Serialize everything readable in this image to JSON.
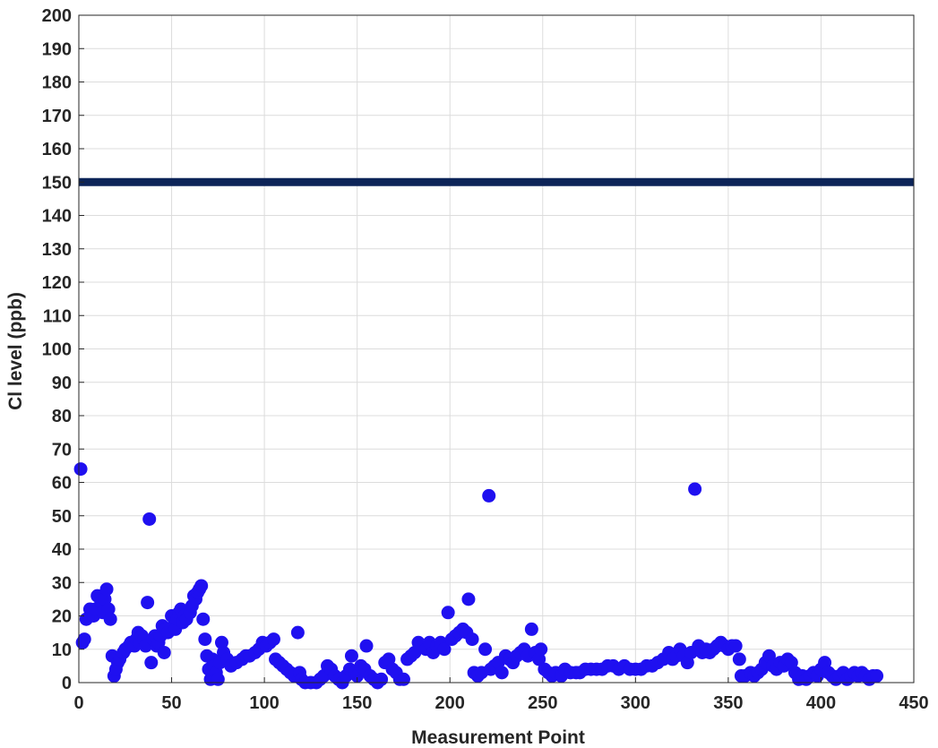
{
  "chart_data": {
    "type": "scatter",
    "title": "",
    "xlabel": "Measurement Point",
    "ylabel": "Cl level (ppb)",
    "xlim": [
      0,
      450
    ],
    "ylim": [
      0,
      200
    ],
    "xticks": [
      0,
      50,
      100,
      150,
      200,
      250,
      300,
      350,
      400,
      450
    ],
    "yticks": [
      0,
      10,
      20,
      30,
      40,
      50,
      60,
      70,
      80,
      90,
      100,
      110,
      120,
      130,
      140,
      150,
      160,
      170,
      180,
      190,
      200
    ],
    "grid": true,
    "marker_color": "#1f10f0",
    "threshold": {
      "y": 150,
      "x_range": [
        0,
        450
      ],
      "color": "#0c2458"
    },
    "points": [
      [
        1,
        64
      ],
      [
        2,
        12
      ],
      [
        3,
        13
      ],
      [
        4,
        19
      ],
      [
        6,
        22
      ],
      [
        8,
        20
      ],
      [
        9,
        22
      ],
      [
        10,
        26
      ],
      [
        12,
        24
      ],
      [
        13,
        21
      ],
      [
        14,
        25
      ],
      [
        15,
        28
      ],
      [
        16,
        22
      ],
      [
        17,
        19
      ],
      [
        18,
        8
      ],
      [
        19,
        2
      ],
      [
        20,
        4
      ],
      [
        21,
        6
      ],
      [
        22,
        7
      ],
      [
        24,
        9
      ],
      [
        25,
        10
      ],
      [
        27,
        11
      ],
      [
        28,
        12
      ],
      [
        30,
        11
      ],
      [
        31,
        13
      ],
      [
        32,
        15
      ],
      [
        33,
        12
      ],
      [
        34,
        14
      ],
      [
        35,
        13
      ],
      [
        36,
        11
      ],
      [
        37,
        24
      ],
      [
        38,
        49
      ],
      [
        39,
        6
      ],
      [
        40,
        13
      ],
      [
        41,
        14
      ],
      [
        42,
        11
      ],
      [
        43,
        12
      ],
      [
        44,
        14
      ],
      [
        45,
        17
      ],
      [
        46,
        9
      ],
      [
        47,
        16
      ],
      [
        48,
        15
      ],
      [
        50,
        20
      ],
      [
        51,
        17
      ],
      [
        52,
        16
      ],
      [
        53,
        19
      ],
      [
        54,
        21
      ],
      [
        55,
        22
      ],
      [
        56,
        18
      ],
      [
        57,
        20
      ],
      [
        58,
        19
      ],
      [
        60,
        21
      ],
      [
        61,
        23
      ],
      [
        62,
        26
      ],
      [
        63,
        25
      ],
      [
        64,
        27
      ],
      [
        65,
        28
      ],
      [
        66,
        29
      ],
      [
        67,
        19
      ],
      [
        68,
        13
      ],
      [
        69,
        8
      ],
      [
        70,
        4
      ],
      [
        71,
        1
      ],
      [
        72,
        7
      ],
      [
        73,
        5
      ],
      [
        74,
        3
      ],
      [
        75,
        1
      ],
      [
        76,
        6
      ],
      [
        77,
        12
      ],
      [
        78,
        9
      ],
      [
        80,
        7
      ],
      [
        82,
        5
      ],
      [
        85,
        6
      ],
      [
        88,
        7
      ],
      [
        90,
        8
      ],
      [
        92,
        8
      ],
      [
        95,
        9
      ],
      [
        97,
        10
      ],
      [
        99,
        12
      ],
      [
        101,
        11
      ],
      [
        103,
        12
      ],
      [
        105,
        13
      ],
      [
        106,
        7
      ],
      [
        108,
        6
      ],
      [
        110,
        5
      ],
      [
        112,
        4
      ],
      [
        114,
        3
      ],
      [
        116,
        2
      ],
      [
        118,
        15
      ],
      [
        119,
        3
      ],
      [
        120,
        1
      ],
      [
        122,
        0
      ],
      [
        125,
        0
      ],
      [
        128,
        0
      ],
      [
        130,
        1
      ],
      [
        132,
        2
      ],
      [
        134,
        5
      ],
      [
        136,
        4
      ],
      [
        138,
        2
      ],
      [
        140,
        1
      ],
      [
        142,
        0
      ],
      [
        144,
        2
      ],
      [
        146,
        4
      ],
      [
        147,
        8
      ],
      [
        149,
        3
      ],
      [
        150,
        2
      ],
      [
        152,
        5
      ],
      [
        154,
        4
      ],
      [
        155,
        11
      ],
      [
        157,
        2
      ],
      [
        159,
        1
      ],
      [
        161,
        0
      ],
      [
        163,
        1
      ],
      [
        165,
        6
      ],
      [
        167,
        7
      ],
      [
        169,
        4
      ],
      [
        171,
        3
      ],
      [
        173,
        1
      ],
      [
        175,
        1
      ],
      [
        177,
        7
      ],
      [
        179,
        8
      ],
      [
        181,
        9
      ],
      [
        183,
        12
      ],
      [
        185,
        11
      ],
      [
        187,
        10
      ],
      [
        189,
        12
      ],
      [
        191,
        9
      ],
      [
        193,
        11
      ],
      [
        195,
        12
      ],
      [
        197,
        10
      ],
      [
        199,
        21
      ],
      [
        201,
        13
      ],
      [
        203,
        14
      ],
      [
        205,
        15
      ],
      [
        207,
        16
      ],
      [
        209,
        15
      ],
      [
        210,
        25
      ],
      [
        212,
        13
      ],
      [
        213,
        3
      ],
      [
        215,
        2
      ],
      [
        217,
        3
      ],
      [
        219,
        10
      ],
      [
        221,
        56
      ],
      [
        222,
        4
      ],
      [
        224,
        5
      ],
      [
        226,
        6
      ],
      [
        228,
        3
      ],
      [
        230,
        8
      ],
      [
        232,
        7
      ],
      [
        234,
        6
      ],
      [
        236,
        8
      ],
      [
        238,
        9
      ],
      [
        240,
        10
      ],
      [
        242,
        8
      ],
      [
        244,
        16
      ],
      [
        246,
        9
      ],
      [
        248,
        7
      ],
      [
        249,
        10
      ],
      [
        251,
        4
      ],
      [
        253,
        3
      ],
      [
        255,
        2
      ],
      [
        257,
        3
      ],
      [
        260,
        2
      ],
      [
        262,
        4
      ],
      [
        265,
        3
      ],
      [
        268,
        3
      ],
      [
        270,
        3
      ],
      [
        273,
        4
      ],
      [
        276,
        4
      ],
      [
        279,
        4
      ],
      [
        282,
        4
      ],
      [
        285,
        5
      ],
      [
        288,
        5
      ],
      [
        291,
        4
      ],
      [
        294,
        5
      ],
      [
        297,
        4
      ],
      [
        300,
        4
      ],
      [
        303,
        4
      ],
      [
        306,
        5
      ],
      [
        309,
        5
      ],
      [
        312,
        6
      ],
      [
        315,
        7
      ],
      [
        318,
        9
      ],
      [
        320,
        7
      ],
      [
        322,
        8
      ],
      [
        324,
        10
      ],
      [
        326,
        8
      ],
      [
        328,
        6
      ],
      [
        330,
        9
      ],
      [
        332,
        58
      ],
      [
        334,
        11
      ],
      [
        336,
        9
      ],
      [
        338,
        10
      ],
      [
        340,
        9
      ],
      [
        342,
        10
      ],
      [
        344,
        11
      ],
      [
        346,
        12
      ],
      [
        348,
        11
      ],
      [
        350,
        10
      ],
      [
        352,
        11
      ],
      [
        354,
        11
      ],
      [
        356,
        7
      ],
      [
        357,
        2
      ],
      [
        359,
        2
      ],
      [
        362,
        3
      ],
      [
        364,
        2
      ],
      [
        366,
        3
      ],
      [
        368,
        4
      ],
      [
        370,
        6
      ],
      [
        372,
        8
      ],
      [
        374,
        5
      ],
      [
        376,
        4
      ],
      [
        378,
        6
      ],
      [
        380,
        5
      ],
      [
        382,
        7
      ],
      [
        384,
        6
      ],
      [
        386,
        3
      ],
      [
        388,
        1
      ],
      [
        390,
        2
      ],
      [
        392,
        1
      ],
      [
        394,
        2
      ],
      [
        396,
        3
      ],
      [
        398,
        2
      ],
      [
        400,
        4
      ],
      [
        402,
        6
      ],
      [
        404,
        3
      ],
      [
        406,
        2
      ],
      [
        408,
        1
      ],
      [
        410,
        2
      ],
      [
        412,
        3
      ],
      [
        414,
        1
      ],
      [
        416,
        2
      ],
      [
        418,
        3
      ],
      [
        420,
        2
      ],
      [
        422,
        3
      ],
      [
        424,
        2
      ],
      [
        426,
        1
      ],
      [
        428,
        2
      ],
      [
        430,
        2
      ]
    ]
  }
}
